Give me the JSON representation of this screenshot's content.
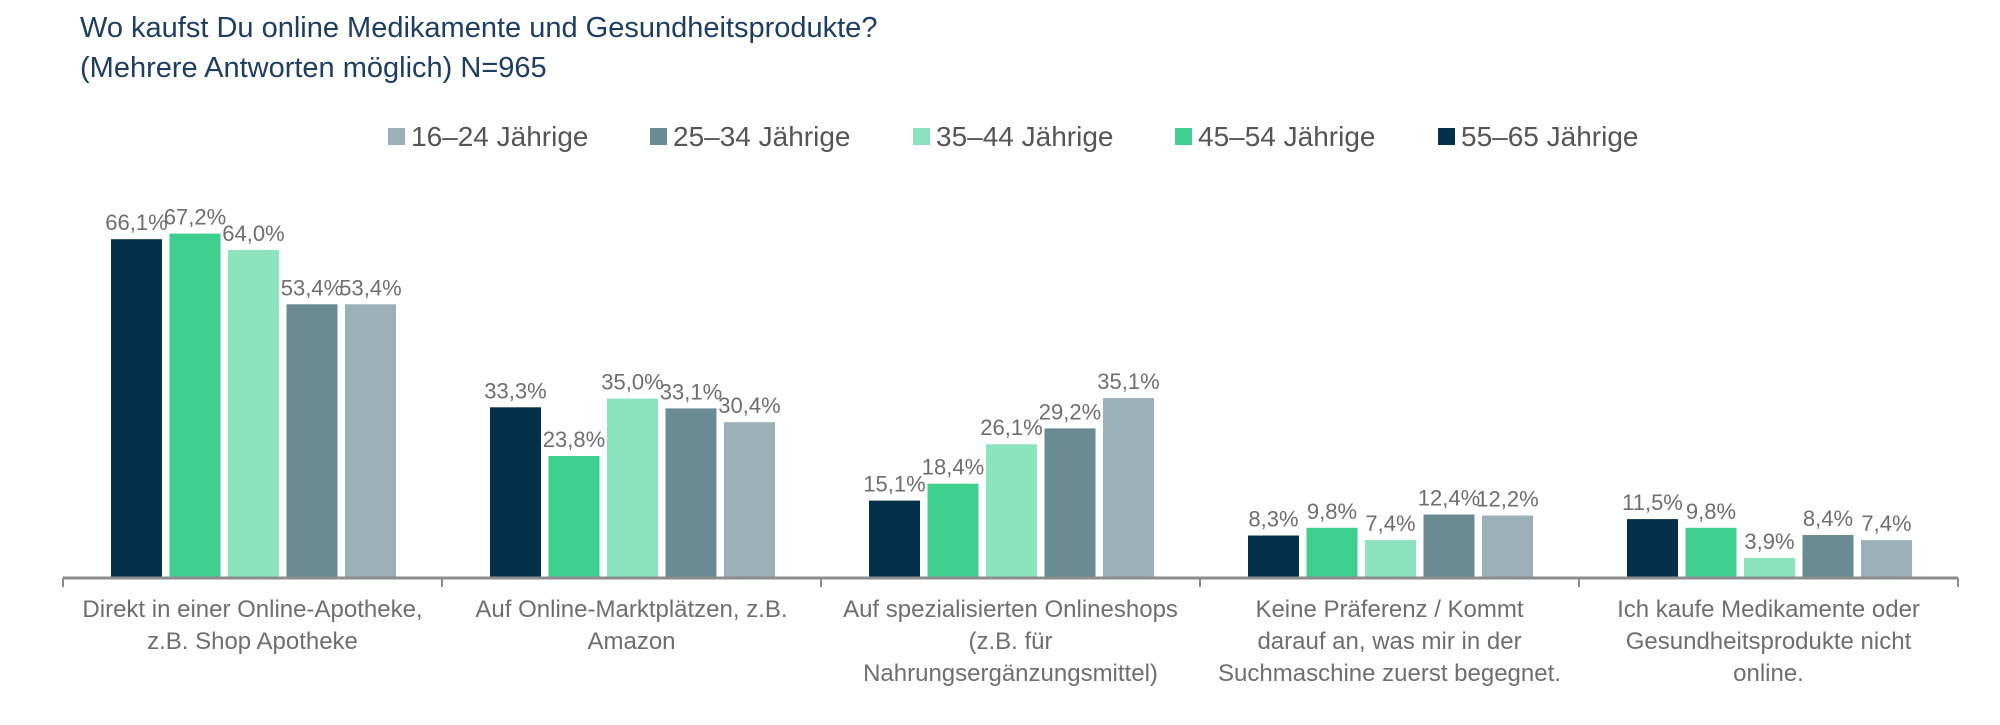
{
  "chart_data": {
    "type": "bar",
    "title_lines": [
      "Wo kaufst Du online Medikamente und Gesundheitsprodukte?",
      "(Mehrere Antworten möglich) N=965"
    ],
    "xlabel": "",
    "ylabel": "",
    "ylim": [
      0,
      70
    ],
    "grid": false,
    "legend_position": "top-center",
    "categories": [
      [
        "Direkt in einer Online-Apotheke,",
        "z.B. Shop Apotheke"
      ],
      [
        "Auf Online-Marktplätzen, z.B.",
        "Amazon"
      ],
      [
        "Auf spezialisierten Onlineshops",
        "(z.B. für",
        "Nahrungsergänzungsmittel)"
      ],
      [
        "Keine Präferenz / Kommt",
        "darauf an, was mir in der",
        "Suchmaschine zuerst begegnet."
      ],
      [
        "Ich kaufe Medikamente oder",
        "Gesundheitsprodukte nicht",
        "online."
      ]
    ],
    "legend": [
      {
        "name": "16–24 Jährige",
        "color": "#9bb0b7"
      },
      {
        "name": "25–34 Jährige",
        "color": "#6a8a94"
      },
      {
        "name": "35–44 Jährige",
        "color": "#8be4bd"
      },
      {
        "name": "45–54 Jährige",
        "color": "#3ecf8e"
      },
      {
        "name": "55–65 Jährige",
        "color": "#05304a"
      }
    ],
    "series_order_in_group": [
      4,
      3,
      2,
      1,
      0
    ],
    "series": [
      {
        "name": "16–24 Jährige",
        "values": [
          53.4,
          30.4,
          35.1,
          12.2,
          7.4
        ],
        "labels": [
          "53,4%",
          "30,4%",
          "35,1%",
          "12,2%",
          "7,4%"
        ]
      },
      {
        "name": "25–34 Jährige",
        "values": [
          53.4,
          33.1,
          29.2,
          12.4,
          8.4
        ],
        "labels": [
          "53,4%",
          "33,1%",
          "29,2%",
          "12,4%",
          "8,4%"
        ]
      },
      {
        "name": "35–44 Jährige",
        "values": [
          64.0,
          35.0,
          26.1,
          7.4,
          3.9
        ],
        "labels": [
          "64,0%",
          "35,0%",
          "26,1%",
          "7,4%",
          "3,9%"
        ]
      },
      {
        "name": "45–54 Jährige",
        "values": [
          67.2,
          23.8,
          18.4,
          9.8,
          9.8
        ],
        "labels": [
          "67,2%",
          "23,8%",
          "18,4%",
          "9,8%",
          "9,8%"
        ]
      },
      {
        "name": "55–65 Jährige",
        "values": [
          66.1,
          33.3,
          15.1,
          8.3,
          11.5
        ],
        "labels": [
          "66,1%",
          "33,3%",
          "15,1%",
          "8,3%",
          "11,5%"
        ]
      }
    ]
  }
}
